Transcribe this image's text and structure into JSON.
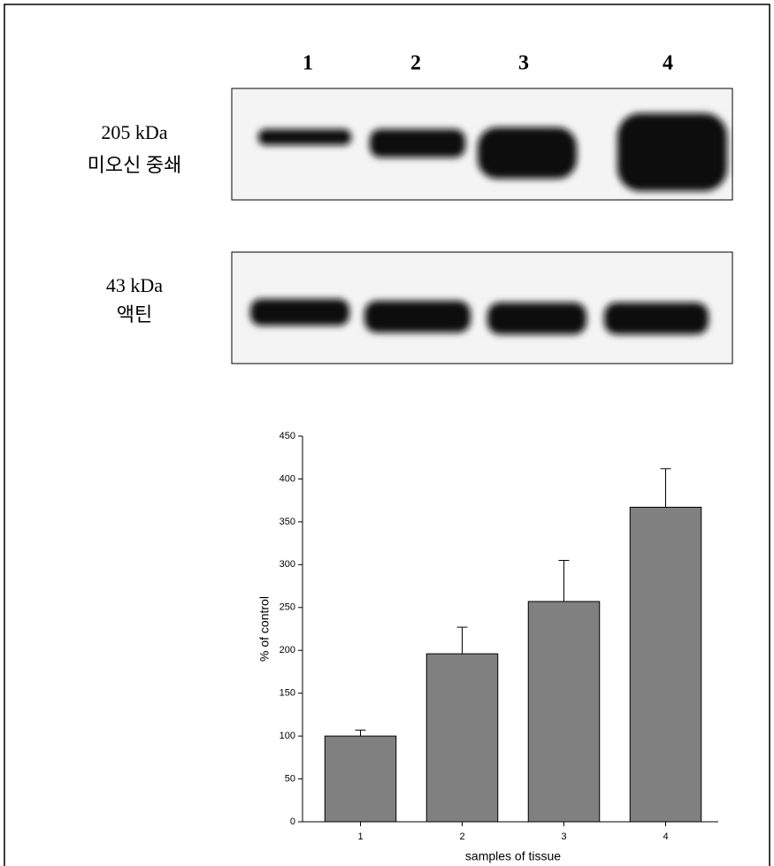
{
  "blot": {
    "lanes": [
      "1",
      "2",
      "3",
      "4"
    ],
    "top_label": [
      "205 kDa",
      "미오신 중쇄"
    ],
    "bottom_label": [
      "43 kDa",
      "액틴"
    ]
  },
  "chart_data": {
    "type": "bar",
    "categories": [
      "1",
      "2",
      "3",
      "4"
    ],
    "values": [
      100,
      196,
      257,
      367
    ],
    "errors": [
      7,
      31,
      48,
      45
    ],
    "color": "#808080",
    "x_label": "samples of tissue",
    "y_label": "% of control",
    "ylim": [
      0,
      450
    ],
    "yticks": [
      0,
      50,
      100,
      150,
      200,
      250,
      300,
      350,
      400,
      450
    ]
  }
}
